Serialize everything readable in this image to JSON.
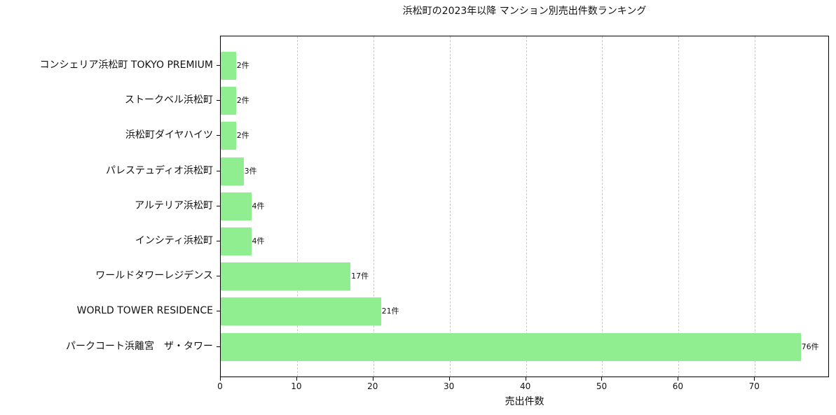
{
  "chart_data": {
    "type": "bar",
    "orientation": "horizontal",
    "title": "浜松町の2023年以降 マンション別売出件数ランキング",
    "xlabel": "売出件数",
    "ylabel": "",
    "xlim": [
      0,
      79.8
    ],
    "xticks": [
      0,
      10,
      20,
      30,
      40,
      50,
      60,
      70
    ],
    "grid": {
      "x": true,
      "y": false,
      "style": "dashed"
    },
    "bar_color": "#90ee90",
    "categories": [
      "コンシェリア浜松町 TOKYO PREMIUM",
      "ストークベル浜松町",
      "浜松町ダイヤハイツ",
      "パレステュディオ浜松町",
      "アルテリア浜松町",
      "インシティ浜松町",
      "ワールドタワーレジデンス",
      "WORLD TOWER RESIDENCE",
      "パークコート浜離宮　ザ・タワー"
    ],
    "values": [
      2,
      2,
      2,
      3,
      4,
      4,
      17,
      21,
      76
    ],
    "value_labels": [
      "2件",
      "2件",
      "2件",
      "3件",
      "4件",
      "4件",
      "17件",
      "21件",
      "76件"
    ]
  }
}
